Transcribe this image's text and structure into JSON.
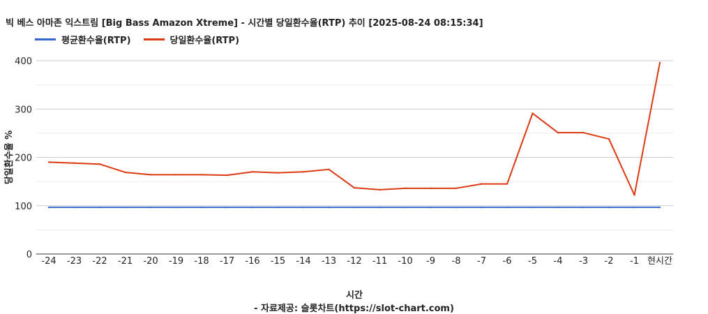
{
  "chart_data": {
    "type": "line",
    "title": "빅 베스 아마존 익스트림 [Big Bass Amazon Xtreme] - 시간별 당일환수율(RTP) 추이 [2025-08-24 08:15:34]",
    "xlabel": "시간",
    "ylabel": "당일환수율 %",
    "source": "- 자료제공: 슬롯차트(https://slot-chart.com)",
    "ylim": [
      0,
      400
    ],
    "yticks": [
      0,
      100,
      200,
      300,
      400
    ],
    "grid": true,
    "legend_position": "top-left",
    "categories": [
      "-24",
      "-23",
      "-22",
      "-21",
      "-20",
      "-19",
      "-18",
      "-17",
      "-16",
      "-15",
      "-14",
      "-13",
      "-12",
      "-11",
      "-10",
      "-9",
      "-8",
      "-7",
      "-6",
      "-5",
      "-4",
      "-3",
      "-2",
      "-1",
      "현시간"
    ],
    "series": [
      {
        "name": "평균환수율(RTP)",
        "color": "#3366cc",
        "values": [
          96.5,
          96.5,
          96.5,
          96.5,
          96.5,
          96.5,
          96.5,
          96.5,
          96.5,
          96.5,
          96.5,
          96.5,
          96.5,
          96.5,
          96.5,
          96.5,
          96.5,
          96.5,
          96.5,
          96.5,
          96.5,
          96.5,
          96.5,
          96.5,
          96.5
        ]
      },
      {
        "name": "당일환수율(RTP)",
        "color": "#dc3912",
        "values": [
          190,
          188,
          186,
          169,
          164,
          164,
          164,
          163,
          170,
          168,
          170,
          175,
          137,
          133,
          136,
          136,
          136,
          145,
          145,
          291,
          251,
          251,
          238,
          122,
          396
        ]
      }
    ]
  }
}
